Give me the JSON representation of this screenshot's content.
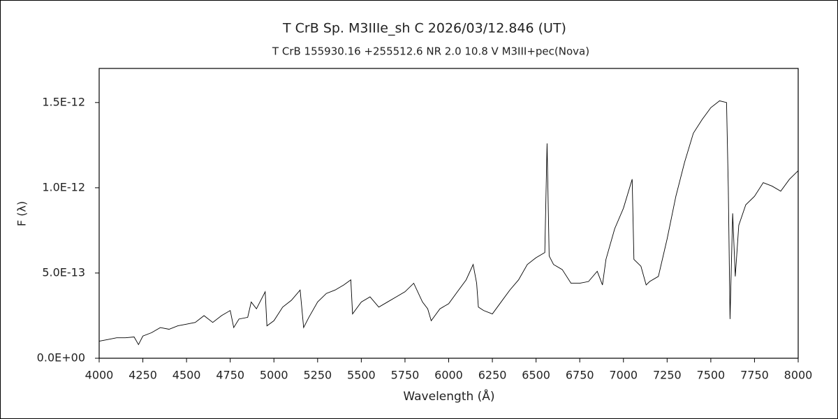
{
  "chart_data": {
    "type": "line",
    "title": "T CrB    Sp. M3IIIe_sh C    2026/03/12.846 (UT)",
    "subtitle": "T CrB    155930.16 +255512.6    NR   2.0  10.8  V    M3III+pec(Nova)",
    "xlabel": "Wavelength (Å)",
    "ylabel": "F (λ)",
    "xlim": [
      4000,
      8000
    ],
    "xticks": [
      4000,
      4250,
      4500,
      4750,
      5000,
      5250,
      5500,
      5750,
      6000,
      6250,
      6500,
      6750,
      7000,
      7250,
      7500,
      7750,
      8000
    ],
    "ylim": [
      0,
      1.7e-12
    ],
    "yticks": [
      {
        "value": 0,
        "label": "0.0E+00"
      },
      {
        "value": 5e-13,
        "label": "5.0E-13"
      },
      {
        "value": 1e-12,
        "label": "1.0E-12"
      },
      {
        "value": 1.5e-12,
        "label": "1.5E-12"
      }
    ],
    "grid": false,
    "series": [
      {
        "color": "#000000",
        "x": [
          4000,
          4050,
          4100,
          4150,
          4200,
          4225,
          4250,
          4300,
          4350,
          4400,
          4450,
          4500,
          4550,
          4600,
          4650,
          4700,
          4750,
          4770,
          4800,
          4850,
          4870,
          4900,
          4950,
          4960,
          5000,
          5050,
          5100,
          5150,
          5170,
          5200,
          5250,
          5300,
          5350,
          5400,
          5440,
          5450,
          5500,
          5550,
          5600,
          5650,
          5700,
          5750,
          5800,
          5850,
          5880,
          5900,
          5950,
          6000,
          6050,
          6100,
          6140,
          6160,
          6170,
          6200,
          6250,
          6300,
          6350,
          6400,
          6450,
          6500,
          6550,
          6563,
          6575,
          6600,
          6650,
          6700,
          6750,
          6800,
          6850,
          6880,
          6900,
          6950,
          7000,
          7050,
          7060,
          7100,
          7130,
          7150,
          7200,
          7250,
          7300,
          7350,
          7400,
          7450,
          7500,
          7550,
          7590,
          7600,
          7610,
          7625,
          7640,
          7660,
          7700,
          7750,
          7800,
          7850,
          7900,
          7950,
          8000
        ],
        "values": [
          1e-13,
          1.1e-13,
          1.2e-13,
          1.2e-13,
          1.25e-13,
          8e-14,
          1.3e-13,
          1.5e-13,
          1.8e-13,
          1.7e-13,
          1.9e-13,
          2e-13,
          2.1e-13,
          2.5e-13,
          2.1e-13,
          2.5e-13,
          2.8e-13,
          1.8e-13,
          2.3e-13,
          2.4e-13,
          3.3e-13,
          2.9e-13,
          3.9e-13,
          1.9e-13,
          2.2e-13,
          3e-13,
          3.4e-13,
          4e-13,
          1.8e-13,
          2.4e-13,
          3.3e-13,
          3.8e-13,
          4e-13,
          4.3e-13,
          4.6e-13,
          2.6e-13,
          3.3e-13,
          3.6e-13,
          3e-13,
          3.3e-13,
          3.6e-13,
          3.9e-13,
          4.4e-13,
          3.3e-13,
          2.9e-13,
          2.2e-13,
          2.9e-13,
          3.2e-13,
          3.9e-13,
          4.6e-13,
          5.5e-13,
          4.4e-13,
          3e-13,
          2.8e-13,
          2.6e-13,
          3.3e-13,
          4e-13,
          4.6e-13,
          5.5e-13,
          5.9e-13,
          6.2e-13,
          1.26e-12,
          6e-13,
          5.5e-13,
          5.2e-13,
          4.4e-13,
          4.4e-13,
          4.5e-13,
          5.1e-13,
          4.3e-13,
          5.8e-13,
          7.6e-13,
          8.8e-13,
          1.05e-12,
          5.8e-13,
          5.4e-13,
          4.3e-13,
          4.5e-13,
          4.8e-13,
          7e-13,
          9.5e-13,
          1.15e-12,
          1.32e-12,
          1.4e-12,
          1.47e-12,
          1.51e-12,
          1.5e-12,
          1e-12,
          2.3e-13,
          8.5e-13,
          4.8e-13,
          7.8e-13,
          9e-13,
          9.5e-13,
          1.03e-12,
          1.01e-12,
          9.8e-13,
          1.05e-12,
          1.1e-12
        ]
      }
    ]
  }
}
